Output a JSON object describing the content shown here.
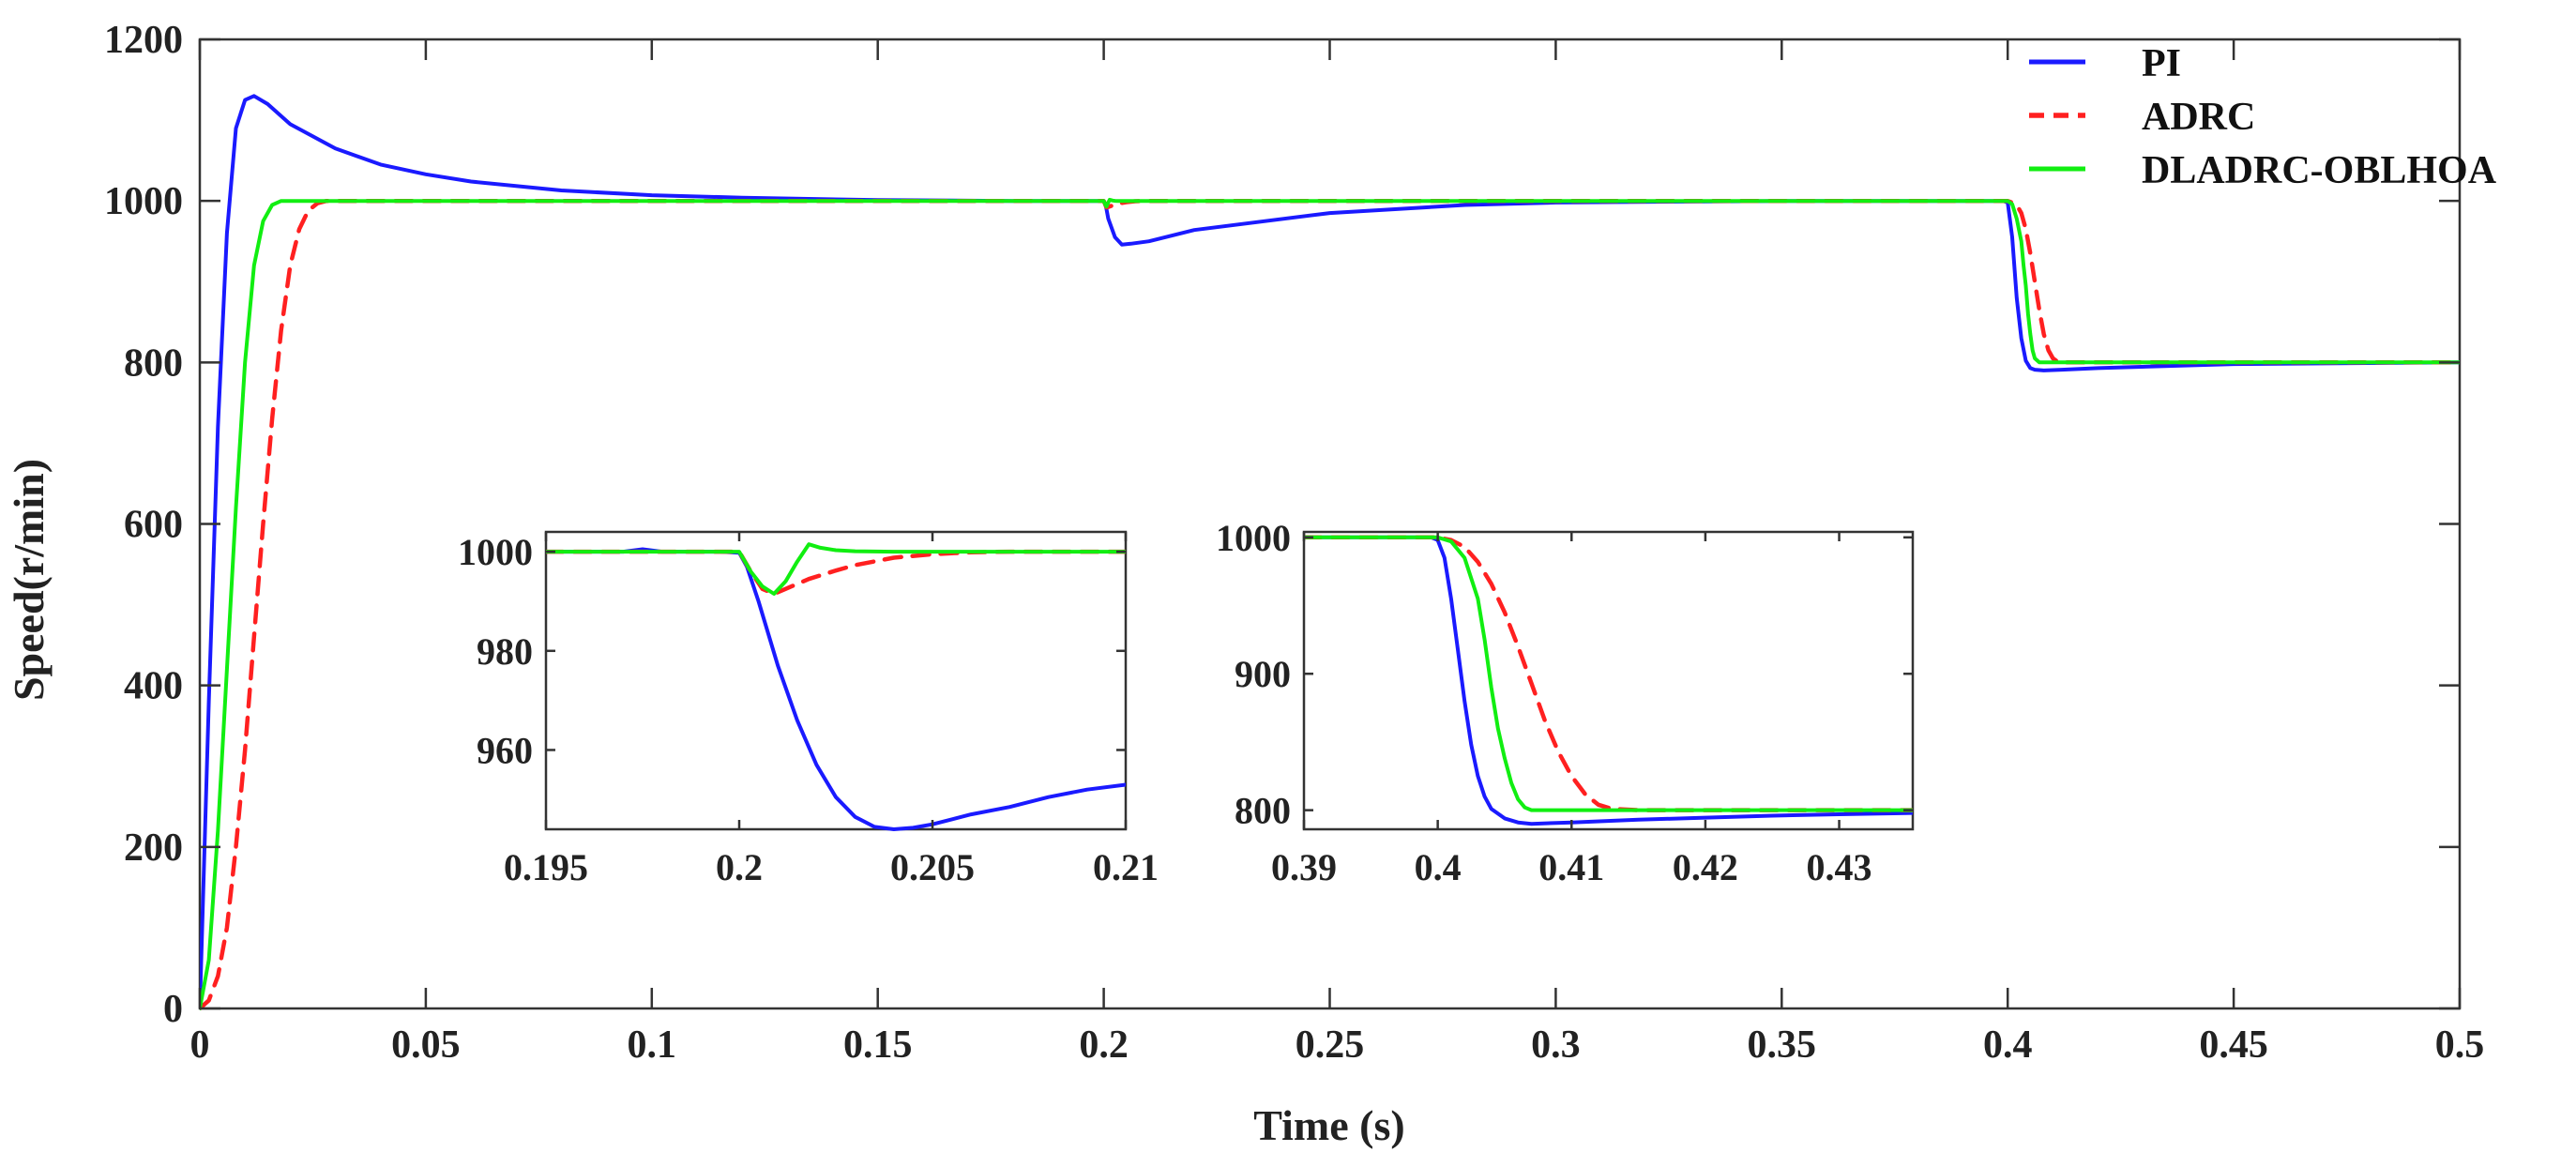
{
  "colors": {
    "PI": "#1a1aff",
    "ADRC": "#ff2020",
    "DLADRC-OBLHOA": "#11ee11",
    "axis": "#333333"
  },
  "chart_data": [
    {
      "id": "main",
      "type": "line",
      "xlabel": "Time (s)",
      "ylabel": "Speed(r/min)",
      "xlim": [
        0,
        0.5
      ],
      "ylim": [
        0,
        1200
      ],
      "xticks": [
        0,
        0.05,
        0.1,
        0.15,
        0.2,
        0.25,
        0.3,
        0.35,
        0.4,
        0.45,
        0.5
      ],
      "xtick_labels": [
        "0",
        "0.05",
        "0.1",
        "0.15",
        "0.2",
        "0.25",
        "0.3",
        "0.35",
        "0.4",
        "0.45",
        "0.5"
      ],
      "yticks": [
        0,
        200,
        400,
        600,
        800,
        1000,
        1200
      ],
      "ytick_labels": [
        "0",
        "200",
        "400",
        "600",
        "800",
        "1000",
        "1200"
      ],
      "legend": {
        "position": "top-right",
        "entries": [
          "PI",
          "ADRC",
          "DLADRC-OBLHOA"
        ]
      },
      "series": [
        {
          "name": "PI",
          "style": "solid",
          "x": [
            0,
            0.002,
            0.004,
            0.006,
            0.008,
            0.01,
            0.012,
            0.015,
            0.02,
            0.03,
            0.04,
            0.05,
            0.06,
            0.08,
            0.1,
            0.12,
            0.15,
            0.18,
            0.2,
            0.2005,
            0.201,
            0.2025,
            0.204,
            0.206,
            0.21,
            0.22,
            0.25,
            0.28,
            0.3,
            0.35,
            0.399,
            0.4,
            0.401,
            0.402,
            0.403,
            0.404,
            0.405,
            0.406,
            0.408,
            0.412,
            0.42,
            0.45,
            0.5
          ],
          "y": [
            0,
            380,
            720,
            960,
            1090,
            1125,
            1130,
            1120,
            1095,
            1065,
            1045,
            1033,
            1024,
            1013,
            1007,
            1004,
            1001,
            1000,
            1000,
            993,
            978,
            955,
            946,
            947,
            950,
            964,
            985,
            995,
            998,
            1000,
            1000,
            998,
            955,
            880,
            830,
            802,
            793,
            791,
            790,
            791,
            793,
            798,
            800
          ]
        },
        {
          "name": "ADRC",
          "style": "dashed",
          "x": [
            0,
            0.002,
            0.004,
            0.006,
            0.008,
            0.01,
            0.012,
            0.014,
            0.016,
            0.018,
            0.02,
            0.022,
            0.024,
            0.026,
            0.028,
            0.03,
            0.2,
            0.2003,
            0.2006,
            0.201,
            0.202,
            0.203,
            0.205,
            0.207,
            0.21,
            0.4,
            0.401,
            0.402,
            0.403,
            0.404,
            0.405,
            0.406,
            0.407,
            0.408,
            0.409,
            0.41,
            0.411,
            0.412,
            0.413,
            0.5
          ],
          "y": [
            0,
            10,
            40,
            100,
            200,
            320,
            460,
            600,
            730,
            840,
            920,
            965,
            988,
            997,
            1000,
            1000,
            1000,
            996,
            992,
            992.5,
            994.5,
            996.5,
            998.5,
            999.6,
            1000,
            1000,
            998,
            995,
            985,
            965,
            935,
            900,
            865,
            835,
            815,
            805,
            801,
            800,
            800,
            800
          ]
        },
        {
          "name": "DLADRC-OBLHOA",
          "style": "solid",
          "x": [
            0,
            0.002,
            0.004,
            0.006,
            0.008,
            0.01,
            0.012,
            0.014,
            0.016,
            0.018,
            0.02,
            0.2,
            0.2003,
            0.2006,
            0.201,
            0.2013,
            0.2016,
            0.202,
            0.2025,
            0.203,
            0.21,
            0.4,
            0.401,
            0.402,
            0.403,
            0.4035,
            0.404,
            0.4045,
            0.405,
            0.4055,
            0.406,
            0.407,
            0.408,
            0.5
          ],
          "y": [
            0,
            60,
            220,
            420,
            620,
            800,
            920,
            975,
            995,
            1000,
            1000,
            1000,
            996,
            993,
            998,
            1001.5,
            1001,
            1000.4,
            1000.1,
            1000,
            1000,
            1000,
            996,
            978,
            950,
            920,
            895,
            860,
            835,
            815,
            805,
            800,
            800,
            800
          ]
        }
      ]
    },
    {
      "id": "inset-1",
      "type": "line",
      "xlim": [
        0.195,
        0.21
      ],
      "ylim": [
        944,
        1004
      ],
      "xticks": [
        0.195,
        0.2,
        0.205,
        0.21
      ],
      "xtick_labels": [
        "0.195",
        "0.2",
        "0.205",
        "0.21"
      ],
      "yticks": [
        960,
        980,
        1000
      ],
      "ytick_labels": [
        "960",
        "980",
        "1000"
      ],
      "series": [
        {
          "name": "PI",
          "style": "solid",
          "x": [
            0.195,
            0.197,
            0.1975,
            0.198,
            0.1995,
            0.2,
            0.2002,
            0.2005,
            0.201,
            0.2015,
            0.202,
            0.2025,
            0.203,
            0.2035,
            0.204,
            0.2045,
            0.205,
            0.2055,
            0.206,
            0.207,
            0.208,
            0.209,
            0.21
          ],
          "y": [
            1000,
            1000,
            1000.5,
            1000,
            1000,
            999.8,
            997,
            990,
            977,
            966,
            957,
            950.5,
            946.5,
            944.5,
            944,
            944.3,
            945,
            946,
            947,
            948.5,
            950.5,
            952,
            953
          ]
        },
        {
          "name": "ADRC",
          "style": "dashed",
          "x": [
            0.195,
            0.2,
            0.2003,
            0.2006,
            0.2009,
            0.2012,
            0.2018,
            0.2025,
            0.203,
            0.204,
            0.205,
            0.206,
            0.207,
            0.21
          ],
          "y": [
            1000,
            1000,
            996,
            992.5,
            991.5,
            992.5,
            994.5,
            996.2,
            997.3,
            998.8,
            999.5,
            999.9,
            1000,
            1000
          ]
        },
        {
          "name": "DLADRC-OBLHOA",
          "style": "solid",
          "x": [
            0.195,
            0.2,
            0.2003,
            0.2006,
            0.2009,
            0.2012,
            0.2015,
            0.2018,
            0.2021,
            0.2025,
            0.203,
            0.204,
            0.21
          ],
          "y": [
            1000,
            1000,
            996,
            993,
            991.5,
            994,
            998,
            1001.5,
            1000.8,
            1000.3,
            1000.1,
            1000,
            1000
          ]
        }
      ]
    },
    {
      "id": "inset-2",
      "type": "line",
      "xlim": [
        0.39,
        0.4355
      ],
      "ylim": [
        786,
        1004
      ],
      "xticks": [
        0.39,
        0.4,
        0.41,
        0.42,
        0.43
      ],
      "xtick_labels": [
        "0.39",
        "0.4",
        "0.41",
        "0.42",
        "0.43"
      ],
      "yticks": [
        800,
        900,
        1000
      ],
      "ytick_labels": [
        "800",
        "900",
        "1000"
      ],
      "series": [
        {
          "name": "PI",
          "style": "solid",
          "x": [
            0.39,
            0.3995,
            0.4,
            0.4005,
            0.401,
            0.4015,
            0.402,
            0.4025,
            0.403,
            0.4035,
            0.404,
            0.405,
            0.406,
            0.407,
            0.41,
            0.415,
            0.42,
            0.425,
            0.43,
            0.4355
          ],
          "y": [
            1000,
            1000,
            998,
            985,
            955,
            918,
            880,
            848,
            825,
            810,
            801,
            794,
            791,
            790,
            791,
            793,
            794.5,
            796,
            797,
            798
          ]
        },
        {
          "name": "ADRC",
          "style": "dashed",
          "x": [
            0.39,
            0.4,
            0.401,
            0.402,
            0.403,
            0.404,
            0.405,
            0.406,
            0.407,
            0.408,
            0.409,
            0.41,
            0.411,
            0.412,
            0.413,
            0.415,
            0.4355
          ],
          "y": [
            1000,
            1000,
            998,
            993,
            982,
            966,
            945,
            920,
            893,
            866,
            843,
            825,
            812,
            804,
            801,
            800,
            800
          ]
        },
        {
          "name": "DLADRC-OBLHOA",
          "style": "solid",
          "x": [
            0.39,
            0.4,
            0.401,
            0.402,
            0.403,
            0.4035,
            0.404,
            0.4045,
            0.405,
            0.4055,
            0.406,
            0.4065,
            0.407,
            0.408,
            0.4355
          ],
          "y": [
            1000,
            1000,
            997,
            985,
            955,
            925,
            890,
            860,
            838,
            820,
            808,
            802,
            800,
            800,
            800
          ]
        }
      ]
    }
  ]
}
